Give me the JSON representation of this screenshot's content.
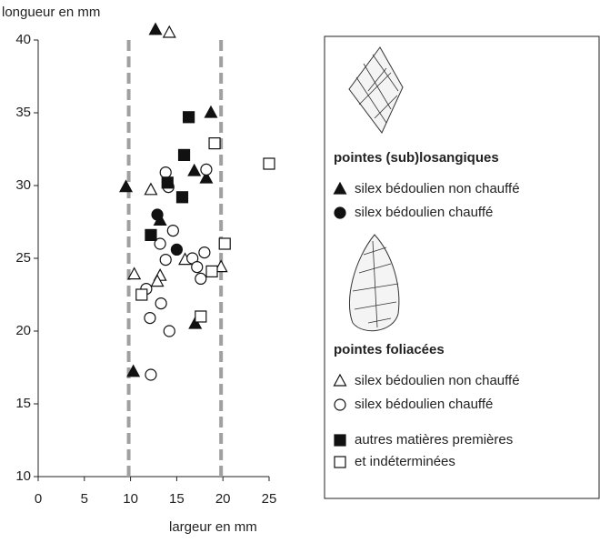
{
  "chart_data": {
    "type": "scatter",
    "y_label": "longueur en mm",
    "x_label": "largeur en mm",
    "xlim": [
      0,
      25
    ],
    "xticks": [
      0,
      5,
      10,
      15,
      20,
      25
    ],
    "ylim": [
      10,
      40
    ],
    "yticks": [
      10,
      15,
      20,
      25,
      30,
      35,
      40
    ],
    "vlines": [
      9.8,
      19.8
    ],
    "vline_color": "#a0a0a0",
    "groups": [
      "pointes (sub)losangiques",
      "pointes foliacées"
    ],
    "series": [
      {
        "name": "silex bédoulien non chauffé",
        "marker": "triangle",
        "filled": true,
        "x": [
          12.7,
          18.7,
          9.5,
          16.9,
          18.2,
          13.2,
          17.0,
          10.3
        ],
        "values": [
          40.7,
          35.0,
          29.9,
          31.0,
          30.5,
          27.6,
          20.5,
          17.2
        ]
      },
      {
        "name": "silex bédoulien chauffé",
        "marker": "circle",
        "filled": true,
        "x": [
          12.9,
          15.0
        ],
        "values": [
          28.0,
          25.6
        ]
      },
      {
        "name": "silex bédoulien non chauffé",
        "marker": "triangle",
        "filled": false,
        "x": [
          14.2,
          12.2,
          10.4,
          13.2,
          12.9,
          15.9,
          19.8
        ],
        "values": [
          40.5,
          29.7,
          23.9,
          23.8,
          23.4,
          24.9,
          24.4
        ]
      },
      {
        "name": "silex bédoulien chauffé",
        "marker": "circle",
        "filled": false,
        "x": [
          13.8,
          14.1,
          18.2,
          14.6,
          13.2,
          13.8,
          16.7,
          17.2,
          18.0,
          17.6,
          11.7,
          13.3,
          12.1,
          14.2,
          12.2
        ],
        "values": [
          30.9,
          29.9,
          31.1,
          26.9,
          26.0,
          24.9,
          25.0,
          24.4,
          25.4,
          23.6,
          22.9,
          21.9,
          20.9,
          20.0,
          17.0
        ]
      },
      {
        "name": "autres matières premières",
        "marker": "square",
        "filled": true,
        "x": [
          16.3,
          15.8,
          15.6,
          12.2,
          14.0
        ],
        "values": [
          34.7,
          32.1,
          29.2,
          26.6,
          30.2
        ]
      },
      {
        "name": "et indéterminées",
        "marker": "square",
        "filled": false,
        "x": [
          19.1,
          25.0,
          20.2,
          18.8,
          11.2,
          17.6
        ],
        "values": [
          32.9,
          31.5,
          26.0,
          24.1,
          22.5,
          21.0
        ]
      }
    ]
  }
}
